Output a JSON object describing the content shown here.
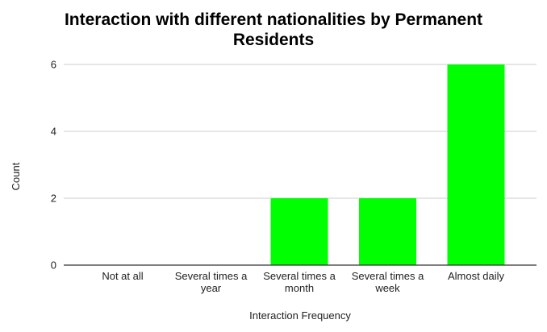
{
  "chart_data": {
    "type": "bar",
    "title_lines": [
      "Interaction with different nationalities by Permanent",
      "Residents"
    ],
    "xlabel": "Interaction Frequency",
    "ylabel": "Count",
    "categories": [
      "Not at all",
      "Several times a year",
      "Several times a month",
      "Several times a week",
      "Almost daily"
    ],
    "category_label_lines": [
      [
        "Not at all"
      ],
      [
        "Several times a",
        "year"
      ],
      [
        "Several times a",
        "month"
      ],
      [
        "Several times a",
        "week"
      ],
      [
        "Almost daily"
      ]
    ],
    "values": [
      0,
      0,
      2,
      2,
      6
    ],
    "ylim": [
      0,
      6
    ],
    "yticks": [
      0,
      2,
      4,
      6
    ],
    "grid": true,
    "legend": "none",
    "bar_color": "#00ff00"
  }
}
